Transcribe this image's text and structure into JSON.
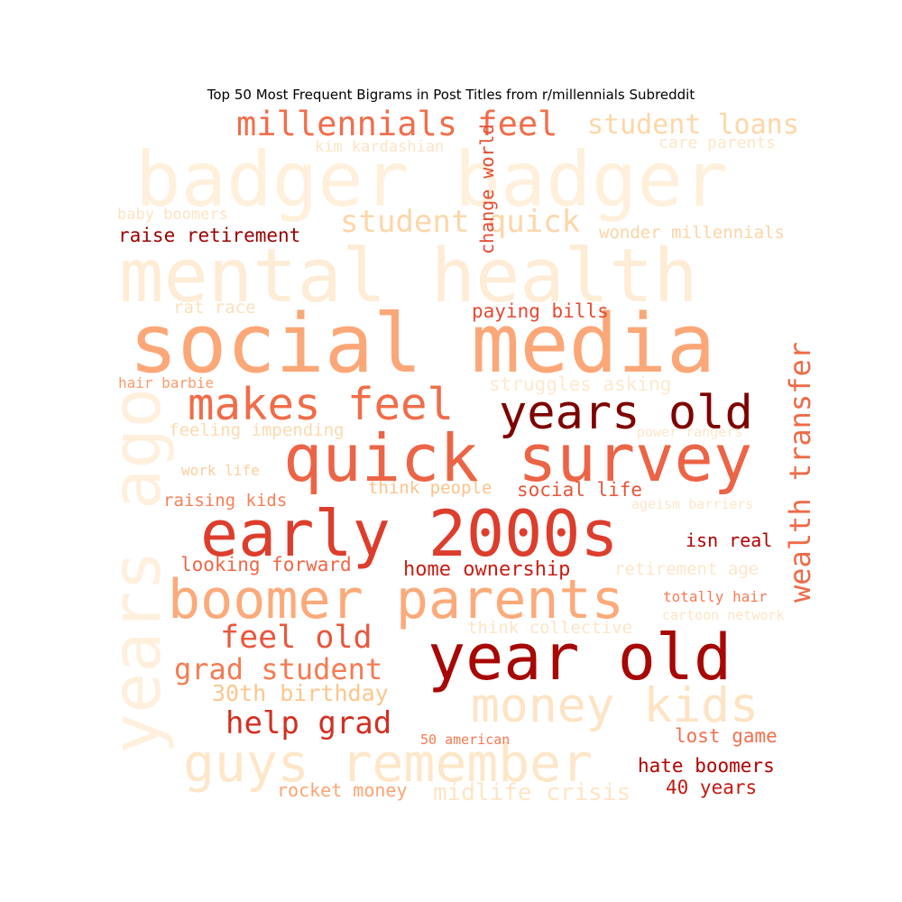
{
  "chart_data": {
    "type": "wordcloud",
    "title": "Top 50 Most Frequent Bigrams in Post Titles from r/millennials Subreddit",
    "colormap": "OrRd",
    "words": [
      {
        "text": "badger badger",
        "color": "#fff0dc"
      },
      {
        "text": "mental health",
        "color": "#feecd6"
      },
      {
        "text": "social media",
        "color": "#fca777"
      },
      {
        "text": "years ago",
        "color": "#fff0de"
      },
      {
        "text": "quick survey",
        "color": "#ec6446"
      },
      {
        "text": "early 2000s",
        "color": "#dd3d2c"
      },
      {
        "text": "year old",
        "color": "#a70705"
      },
      {
        "text": "boomer parents",
        "color": "#fcaa7a"
      },
      {
        "text": "guys remember",
        "color": "#fee7c8"
      },
      {
        "text": "money kids",
        "color": "#fee3c4"
      },
      {
        "text": "years old",
        "color": "#7f0000"
      },
      {
        "text": "makes feel",
        "color": "#f16c49"
      },
      {
        "text": "millennials feel",
        "color": "#f16e4c"
      },
      {
        "text": "wealth transfer",
        "color": "#ef6a48"
      },
      {
        "text": "student quick",
        "color": "#fdd6aa"
      },
      {
        "text": "student loans",
        "color": "#fdd7a8"
      },
      {
        "text": "feel old",
        "color": "#e9573c"
      },
      {
        "text": "grad student",
        "color": "#f67b52"
      },
      {
        "text": "help grad",
        "color": "#d32f21"
      },
      {
        "text": "30th birthday",
        "color": "#fdc68e"
      },
      {
        "text": "midlife crisis",
        "color": "#fee5c6"
      },
      {
        "text": "change world",
        "color": "#e34a33"
      },
      {
        "text": "raise retirement",
        "color": "#990000"
      },
      {
        "text": "wonder millennials",
        "color": "#fdd4a6"
      },
      {
        "text": "home ownership",
        "color": "#c81d13"
      },
      {
        "text": "hate boomers",
        "color": "#b30000"
      },
      {
        "text": "paying bills",
        "color": "#e34a33"
      },
      {
        "text": "40 years",
        "color": "#c11911"
      },
      {
        "text": "lost game",
        "color": "#f07150"
      },
      {
        "text": "isn real",
        "color": "#b30000"
      },
      {
        "text": "social life",
        "color": "#e8543a"
      },
      {
        "text": "looking forward",
        "color": "#ee6745"
      },
      {
        "text": "think people",
        "color": "#fdc28b"
      },
      {
        "text": "raising kids",
        "color": "#f87f55"
      },
      {
        "text": "rocket money",
        "color": "#fca474"
      },
      {
        "text": "retirement age",
        "color": "#fee6c9"
      },
      {
        "text": "struggles asking",
        "color": "#fee9d0"
      },
      {
        "text": "think collective",
        "color": "#fee5c7"
      },
      {
        "text": "kim kardashian",
        "color": "#fee4c5"
      },
      {
        "text": "care parents",
        "color": "#fee6c8"
      },
      {
        "text": "baby boomers",
        "color": "#fee3c3"
      },
      {
        "text": "rat race",
        "color": "#fde0bc"
      },
      {
        "text": "feeling impending",
        "color": "#fdd9b0"
      },
      {
        "text": "hair barbie",
        "color": "#fb9a6a"
      },
      {
        "text": "work life",
        "color": "#fdcd9d"
      },
      {
        "text": "power rangers",
        "color": "#fee6ca"
      },
      {
        "text": "ageism barriers",
        "color": "#fee6ca"
      },
      {
        "text": "totally hair",
        "color": "#f57b55"
      },
      {
        "text": "cartoon network",
        "color": "#fee4c6"
      },
      {
        "text": "50 american",
        "color": "#f57a53"
      }
    ]
  }
}
